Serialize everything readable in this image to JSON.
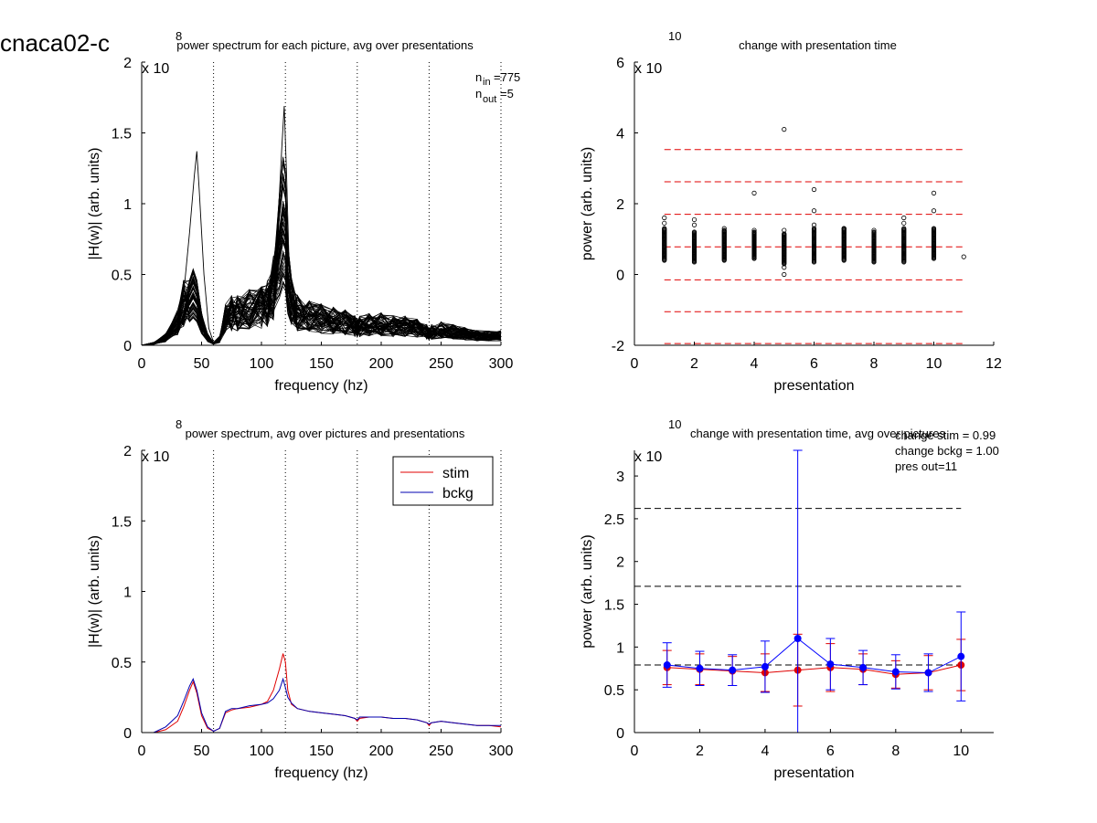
{
  "figure_label": "cnaca02-c",
  "chart_data": [
    {
      "id": "p1",
      "type": "line",
      "title": "power spectrum for each picture, avg over presentations",
      "xlabel": "frequency (hz)",
      "ylabel": "|H(w)| (arb. units)",
      "xlim": [
        0,
        300
      ],
      "ylim": [
        0,
        2
      ],
      "xticks": [
        0,
        50,
        100,
        150,
        200,
        250,
        300
      ],
      "yticks": [
        0,
        0.5,
        1,
        1.5,
        2
      ],
      "ytick_labels": [
        "0",
        "0.5",
        "1",
        "1.5",
        "2"
      ],
      "exponent": {
        "base": "x 10",
        "power": "8"
      },
      "vlines": [
        60,
        120,
        180,
        240,
        300
      ],
      "annotation": {
        "n_in_label": "n",
        "n_in_sub": "in",
        "n_in_value": "=775",
        "n_out_label": "n",
        "n_out_sub": "out",
        "n_out_value": "=5"
      },
      "line_color": "#000000",
      "series_template": {
        "x": [
          0,
          10,
          20,
          30,
          35,
          40,
          43,
          46,
          50,
          55,
          60,
          65,
          70,
          75,
          80,
          90,
          100,
          105,
          110,
          115,
          118,
          120,
          122,
          125,
          130,
          140,
          150,
          160,
          170,
          178,
          180,
          182,
          190,
          200,
          210,
          220,
          230,
          238,
          240,
          242,
          250,
          260,
          270,
          280,
          290,
          300
        ],
        "y": [
          0.0,
          0.01,
          0.04,
          0.12,
          0.22,
          0.3,
          0.35,
          0.3,
          0.15,
          0.04,
          0.01,
          0.03,
          0.14,
          0.17,
          0.17,
          0.19,
          0.2,
          0.22,
          0.3,
          0.45,
          0.56,
          0.52,
          0.3,
          0.2,
          0.17,
          0.15,
          0.14,
          0.13,
          0.12,
          0.1,
          0.09,
          0.1,
          0.11,
          0.11,
          0.1,
          0.1,
          0.09,
          0.07,
          0.06,
          0.07,
          0.08,
          0.07,
          0.06,
          0.05,
          0.05,
          0.05
        ]
      },
      "peak_curve": {
        "x": [
          0,
          10,
          20,
          30,
          36,
          40,
          44,
          46,
          48,
          52,
          56,
          60,
          65,
          70,
          75,
          80,
          90,
          100,
          105,
          110,
          114,
          117,
          119,
          121,
          123,
          126,
          130,
          140,
          150,
          160,
          170,
          180,
          190,
          200,
          210,
          220,
          230,
          240,
          250,
          260,
          270,
          280,
          290,
          300
        ],
        "y": [
          0.0,
          0.02,
          0.06,
          0.2,
          0.45,
          0.8,
          1.2,
          1.37,
          1.1,
          0.5,
          0.12,
          0.02,
          0.04,
          0.2,
          0.25,
          0.26,
          0.3,
          0.28,
          0.32,
          0.5,
          0.9,
          1.4,
          1.69,
          1.2,
          0.6,
          0.35,
          0.25,
          0.22,
          0.2,
          0.15,
          0.14,
          0.12,
          0.13,
          0.12,
          0.11,
          0.1,
          0.09,
          0.08,
          0.09,
          0.08,
          0.07,
          0.06,
          0.06,
          0.05
        ]
      },
      "series_count": 60
    },
    {
      "id": "p2",
      "type": "scatter",
      "title": "change with presentation time",
      "xlabel": "presentation",
      "ylabel": "power (arb. units)",
      "xlim": [
        0,
        12
      ],
      "ylim": [
        -2,
        6
      ],
      "xticks": [
        0,
        2,
        4,
        6,
        8,
        10,
        12
      ],
      "yticks": [
        -2,
        0,
        2,
        4,
        6
      ],
      "ytick_labels": [
        "-2",
        "0",
        "2",
        "4",
        "6"
      ],
      "exponent": {
        "base": "x 10",
        "power": "10"
      },
      "hlines": [
        -1.95,
        -1.05,
        -0.15,
        0.78,
        1.7,
        2.62,
        3.53
      ],
      "hline_color": "#e00000",
      "hline_xrange": [
        1,
        11
      ],
      "marker_color": "#000000",
      "columns": [
        {
          "x": 1,
          "dense_range": [
            0.4,
            1.3
          ],
          "outliers": [
            1.6,
            1.45
          ]
        },
        {
          "x": 2,
          "dense_range": [
            0.35,
            1.2
          ],
          "outliers": [
            1.55,
            1.4
          ]
        },
        {
          "x": 3,
          "dense_range": [
            0.4,
            1.25
          ],
          "outliers": [
            1.3
          ]
        },
        {
          "x": 4,
          "dense_range": [
            0.45,
            1.2
          ],
          "outliers": [
            2.3,
            1.25
          ]
        },
        {
          "x": 5,
          "dense_range": [
            0.3,
            1.15
          ],
          "outliers": [
            4.1,
            0.0,
            0.2,
            1.25
          ]
        },
        {
          "x": 6,
          "dense_range": [
            0.35,
            1.3
          ],
          "outliers": [
            2.4,
            1.8,
            1.4
          ]
        },
        {
          "x": 7,
          "dense_range": [
            0.4,
            1.3
          ],
          "outliers": [
            1.3
          ]
        },
        {
          "x": 8,
          "dense_range": [
            0.35,
            1.2
          ],
          "outliers": [
            1.25
          ]
        },
        {
          "x": 9,
          "dense_range": [
            0.35,
            1.3
          ],
          "outliers": [
            1.6,
            1.45
          ]
        },
        {
          "x": 10,
          "dense_range": [
            0.45,
            1.3
          ],
          "outliers": [
            2.3,
            1.8
          ]
        },
        {
          "x": 11,
          "dense_range": [
            0.5,
            0.5
          ],
          "outliers": [
            0.5
          ]
        }
      ]
    },
    {
      "id": "p3",
      "type": "line",
      "title": "power spectrum, avg over pictures and presentations",
      "xlabel": "frequency (hz)",
      "ylabel": "|H(w)| (arb. units)",
      "xlim": [
        0,
        300
      ],
      "ylim": [
        0,
        2
      ],
      "xticks": [
        0,
        50,
        100,
        150,
        200,
        250,
        300
      ],
      "yticks": [
        0,
        0.5,
        1,
        1.5,
        2
      ],
      "ytick_labels": [
        "0",
        "0.5",
        "1",
        "1.5",
        "2"
      ],
      "exponent": {
        "base": "x 10",
        "power": "8"
      },
      "vlines": [
        60,
        120,
        180,
        240,
        300
      ],
      "legend_position": "top-right",
      "x": [
        0,
        10,
        20,
        30,
        35,
        40,
        43,
        46,
        50,
        55,
        60,
        65,
        70,
        75,
        80,
        90,
        100,
        105,
        110,
        115,
        118,
        120,
        122,
        125,
        130,
        140,
        150,
        160,
        170,
        178,
        180,
        182,
        190,
        200,
        210,
        220,
        230,
        238,
        240,
        242,
        250,
        260,
        270,
        280,
        290,
        300
      ],
      "series": [
        {
          "name": "stim",
          "color": "#e00000",
          "y": [
            0.0,
            0.0,
            0.02,
            0.08,
            0.18,
            0.3,
            0.36,
            0.28,
            0.12,
            0.03,
            0.01,
            0.03,
            0.14,
            0.16,
            0.17,
            0.18,
            0.2,
            0.22,
            0.3,
            0.45,
            0.56,
            0.5,
            0.3,
            0.2,
            0.17,
            0.15,
            0.14,
            0.13,
            0.12,
            0.1,
            0.08,
            0.1,
            0.11,
            0.11,
            0.1,
            0.1,
            0.09,
            0.07,
            0.05,
            0.07,
            0.08,
            0.07,
            0.06,
            0.05,
            0.05,
            0.04
          ]
        },
        {
          "name": "bckg",
          "color": "#0000b0",
          "y": [
            0.0,
            0.0,
            0.04,
            0.12,
            0.22,
            0.33,
            0.38,
            0.3,
            0.14,
            0.04,
            0.01,
            0.03,
            0.15,
            0.17,
            0.17,
            0.19,
            0.2,
            0.21,
            0.24,
            0.3,
            0.38,
            0.32,
            0.25,
            0.21,
            0.17,
            0.15,
            0.14,
            0.13,
            0.12,
            0.1,
            0.09,
            0.11,
            0.11,
            0.11,
            0.1,
            0.1,
            0.09,
            0.07,
            0.06,
            0.07,
            0.08,
            0.07,
            0.06,
            0.05,
            0.05,
            0.05
          ]
        }
      ]
    },
    {
      "id": "p4",
      "type": "line",
      "title": "change with presentation time, avg over pictures",
      "xlabel": "presentation",
      "ylabel": "power (arb. units)",
      "xlim": [
        0,
        11
      ],
      "ylim": [
        0,
        3.3
      ],
      "xticks": [
        0,
        2,
        4,
        6,
        8,
        10
      ],
      "yticks": [
        0,
        0.5,
        1,
        1.5,
        2,
        2.5,
        3
      ],
      "ytick_labels": [
        "0",
        "0.5",
        "1",
        "1.5",
        "2",
        "2.5",
        "3"
      ],
      "exponent": {
        "base": "x 10",
        "power": "10"
      },
      "hlines": [
        0.79,
        1.71,
        2.62
      ],
      "hline_color": "#000000",
      "hline_xrange": [
        0,
        10
      ],
      "annotations": [
        "change stim = 0.99",
        "change bckg = 1.00",
        "pres out=11"
      ],
      "x": [
        1,
        2,
        3,
        4,
        5,
        6,
        7,
        8,
        9,
        10
      ],
      "series": [
        {
          "name": "stim",
          "color": "#e00000",
          "y": [
            0.76,
            0.74,
            0.72,
            0.7,
            0.73,
            0.76,
            0.74,
            0.68,
            0.7,
            0.79
          ],
          "err": [
            0.2,
            0.18,
            0.17,
            0.22,
            0.42,
            0.28,
            0.18,
            0.16,
            0.2,
            0.3
          ]
        },
        {
          "name": "bckg",
          "color": "#0000ff",
          "y": [
            0.79,
            0.75,
            0.73,
            0.77,
            1.1,
            0.8,
            0.76,
            0.71,
            0.7,
            0.89
          ],
          "err": [
            0.26,
            0.2,
            0.18,
            0.3,
            2.3,
            0.3,
            0.2,
            0.2,
            0.22,
            0.52
          ]
        }
      ]
    }
  ]
}
